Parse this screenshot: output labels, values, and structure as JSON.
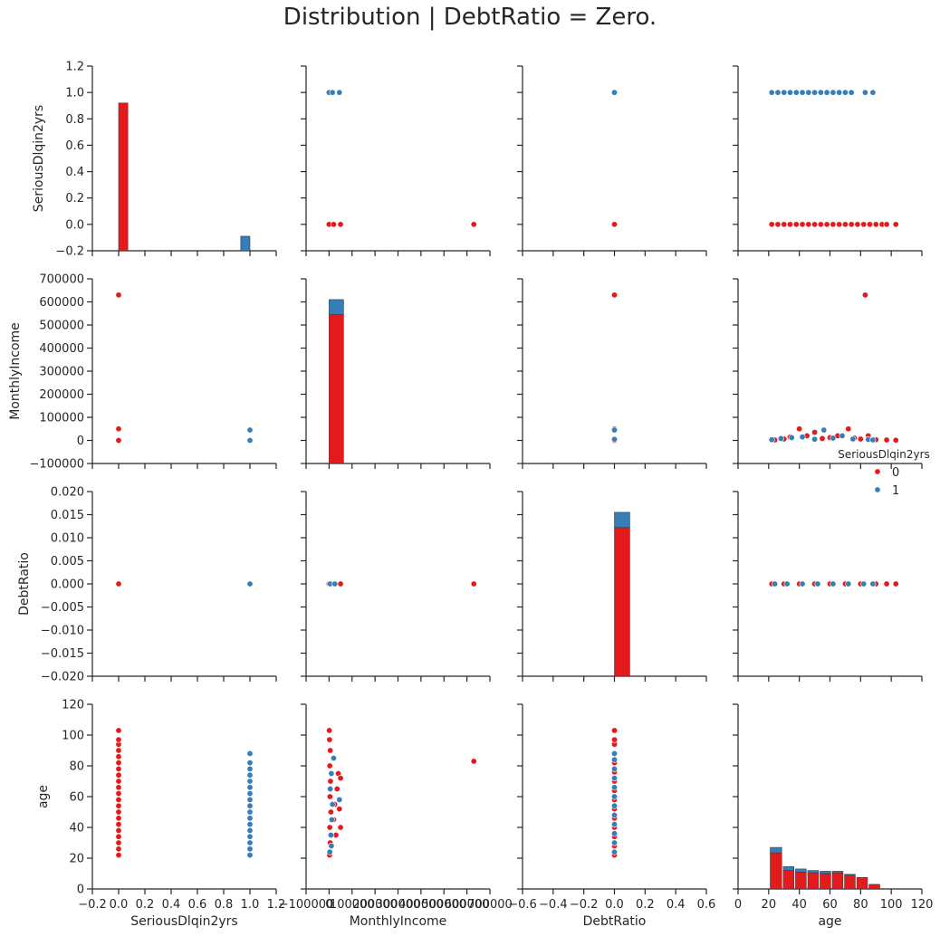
{
  "title": "Distribution | DebtRatio = Zero.",
  "colors": {
    "class0": "#e41a1c",
    "class1": "#377eb8",
    "axis": "#262626"
  },
  "legend": {
    "title": "SeriousDlqin2yrs",
    "entries": [
      {
        "label": "0",
        "color": "#e41a1c"
      },
      {
        "label": "1",
        "color": "#377eb8"
      }
    ],
    "placement": "right, between row 2 and row 3"
  },
  "chart_data": {
    "type": "scatter",
    "title": "Distribution | DebtRatio = Zero.",
    "grid": false,
    "variables": [
      "SeriousDlqin2yrs",
      "MonthlyIncome",
      "DebtRatio",
      "age"
    ],
    "axes": {
      "SeriousDlqin2yrs": {
        "range": [
          -0.2,
          1.2
        ],
        "ticks": [
          -0.2,
          0,
          0.2,
          0.4,
          0.6,
          0.8,
          1.0,
          1.2
        ],
        "row_tick_labels": [
          "1.2",
          "1.0",
          "0.8",
          "0.6",
          "0.4",
          "0.2",
          "0.0",
          "−0.2"
        ],
        "col_tick_labels": [
          "−0.2",
          "0.0",
          "0.2",
          "0.4",
          "0.6",
          "0.8",
          "1.0",
          "1.2"
        ]
      },
      "MonthlyIncome": {
        "range": [
          -100000,
          700000
        ],
        "ticks": [
          -100000,
          0,
          100000,
          200000,
          300000,
          400000,
          500000,
          600000,
          700000
        ],
        "row_tick_labels": [
          "700000",
          "600000",
          "500000",
          "400000",
          "300000",
          "200000",
          "100000",
          "0",
          "−100000"
        ],
        "col_tick_labels": [
          "−100000",
          "0",
          "100000",
          "200000",
          "300000",
          "400000",
          "500000",
          "600000",
          "700000"
        ]
      },
      "DebtRatio": {
        "row_range": [
          -0.02,
          0.02
        ],
        "col_range": [
          -0.6,
          0.6
        ],
        "row_ticks": [
          -0.02,
          -0.015,
          -0.01,
          -0.005,
          0,
          0.005,
          0.01,
          0.015,
          0.02
        ],
        "col_ticks": [
          -0.6,
          -0.4,
          -0.2,
          0,
          0.2,
          0.4,
          0.6
        ],
        "row_tick_labels": [
          "0.020",
          "0.015",
          "0.010",
          "0.005",
          "0.000",
          "−0.005",
          "−0.010",
          "−0.015",
          "−0.020"
        ],
        "col_tick_labels": [
          "−0.6",
          "−0.4",
          "−0.2",
          "0.0",
          "0.2",
          "0.4",
          "0.6"
        ]
      },
      "age": {
        "range": [
          0,
          120
        ],
        "ticks": [
          0,
          20,
          40,
          60,
          80,
          100,
          120
        ],
        "row_tick_labels": [
          "120",
          "100",
          "80",
          "60",
          "40",
          "20",
          "0"
        ],
        "col_tick_labels": [
          "0",
          "20",
          "40",
          "60",
          "80",
          "100",
          "120"
        ]
      }
    },
    "diagonal_histograms": {
      "SeriousDlqin2yrs": [
        {
          "x0": 0.0,
          "x1": 0.07,
          "y0": -0.2,
          "y1": 0.92,
          "series": "0"
        },
        {
          "x0": 0.93,
          "x1": 1.0,
          "y0": -0.2,
          "y1": -0.09,
          "series": "1"
        }
      ],
      "MonthlyIncome": [
        {
          "x0": 0,
          "x1": 63000,
          "y0": -100000,
          "y1": 545000,
          "series": "0"
        },
        {
          "x0": 0,
          "x1": 63000,
          "y0": 545000,
          "y1": 610000,
          "series": "1"
        }
      ],
      "DebtRatio": [
        {
          "x0": 0.0,
          "x1": 0.1,
          "y0": -0.02,
          "y1": 0.0122,
          "series": "0"
        },
        {
          "x0": 0.0,
          "x1": 0.1,
          "y0": 0.0122,
          "y1": 0.0155,
          "series": "1"
        }
      ],
      "age": [
        {
          "x0": 21,
          "x1": 28.5,
          "y0": 0,
          "y1": 23.5,
          "series": "0"
        },
        {
          "x0": 21,
          "x1": 28.5,
          "y0": 23.5,
          "y1": 27,
          "series": "1"
        },
        {
          "x0": 29.5,
          "x1": 36.5,
          "y0": 0,
          "y1": 12,
          "series": "0"
        },
        {
          "x0": 29.5,
          "x1": 36.5,
          "y0": 12,
          "y1": 14.5,
          "series": "1"
        },
        {
          "x0": 37.5,
          "x1": 44.5,
          "y0": 0,
          "y1": 11,
          "series": "0"
        },
        {
          "x0": 37.5,
          "x1": 44.5,
          "y0": 11,
          "y1": 13,
          "series": "1"
        },
        {
          "x0": 45.5,
          "x1": 52.5,
          "y0": 0,
          "y1": 10.5,
          "series": "0"
        },
        {
          "x0": 45.5,
          "x1": 52.5,
          "y0": 10.5,
          "y1": 12,
          "series": "1"
        },
        {
          "x0": 53.5,
          "x1": 60.5,
          "y0": 0,
          "y1": 10,
          "series": "0"
        },
        {
          "x0": 53.5,
          "x1": 60.5,
          "y0": 10,
          "y1": 11.5,
          "series": "1"
        },
        {
          "x0": 61.5,
          "x1": 68.5,
          "y0": 0,
          "y1": 10.5,
          "series": "0"
        },
        {
          "x0": 61.5,
          "x1": 68.5,
          "y0": 10.5,
          "y1": 11.5,
          "series": "1"
        },
        {
          "x0": 69.5,
          "x1": 76.5,
          "y0": 0,
          "y1": 9,
          "series": "0"
        },
        {
          "x0": 69.5,
          "x1": 76.5,
          "y0": 9,
          "y1": 9.5,
          "series": "1"
        },
        {
          "x0": 77.5,
          "x1": 84.5,
          "y0": 0,
          "y1": 7.5,
          "series": "0"
        },
        {
          "x0": 85.5,
          "x1": 92.5,
          "y0": 0,
          "y1": 3,
          "series": "0"
        }
      ]
    },
    "scatter_points": {
      "SeriousDlqin2yrs|MonthlyIncome": {
        "0": [
          [
            0,
            0
          ],
          [
            0,
            50000
          ],
          [
            0,
            630000
          ]
        ],
        "1": [
          [
            1,
            0
          ],
          [
            1,
            45000
          ]
        ]
      },
      "SeriousDlqin2yrs|DebtRatio": {
        "0": [
          [
            0,
            0
          ]
        ],
        "1": [
          [
            1,
            0
          ]
        ]
      },
      "SeriousDlqin2yrs|age": {
        "0": [
          [
            0,
            22
          ],
          [
            0,
            26
          ],
          [
            0,
            30
          ],
          [
            0,
            34
          ],
          [
            0,
            38
          ],
          [
            0,
            42
          ],
          [
            0,
            46
          ],
          [
            0,
            50
          ],
          [
            0,
            54
          ],
          [
            0,
            58
          ],
          [
            0,
            62
          ],
          [
            0,
            66
          ],
          [
            0,
            70
          ],
          [
            0,
            74
          ],
          [
            0,
            78
          ],
          [
            0,
            82
          ],
          [
            0,
            86
          ],
          [
            0,
            90
          ],
          [
            0,
            94
          ],
          [
            0,
            97
          ],
          [
            0,
            103
          ]
        ],
        "1": [
          [
            1,
            22
          ],
          [
            1,
            26
          ],
          [
            1,
            30
          ],
          [
            1,
            34
          ],
          [
            1,
            38
          ],
          [
            1,
            42
          ],
          [
            1,
            46
          ],
          [
            1,
            50
          ],
          [
            1,
            54
          ],
          [
            1,
            58
          ],
          [
            1,
            62
          ],
          [
            1,
            66
          ],
          [
            1,
            70
          ],
          [
            1,
            74
          ],
          [
            1,
            78
          ],
          [
            1,
            82
          ],
          [
            1,
            88
          ]
        ]
      },
      "MonthlyIncome|SeriousDlqin2yrs": {
        "0": [
          [
            0,
            0
          ],
          [
            20000,
            0
          ],
          [
            50000,
            0
          ],
          [
            630000,
            0
          ]
        ],
        "1": [
          [
            0,
            1
          ],
          [
            15000,
            1
          ],
          [
            45000,
            1
          ]
        ]
      },
      "MonthlyIncome|DebtRatio": {
        "0": [
          [
            0,
            0
          ],
          [
            50000,
            0
          ],
          [
            630000,
            0
          ]
        ],
        "1": [
          [
            5000,
            0
          ],
          [
            25000,
            0
          ]
        ]
      },
      "MonthlyIncome|age": {
        "0": [
          [
            2000,
            22
          ],
          [
            5000,
            30
          ],
          [
            3000,
            40
          ],
          [
            8000,
            50
          ],
          [
            4000,
            60
          ],
          [
            6000,
            70
          ],
          [
            3000,
            80
          ],
          [
            5000,
            90
          ],
          [
            2000,
            97
          ],
          [
            1000,
            103
          ],
          [
            20000,
            45
          ],
          [
            25000,
            55
          ],
          [
            30000,
            35
          ],
          [
            35000,
            65
          ],
          [
            40000,
            75
          ],
          [
            50000,
            72
          ],
          [
            45000,
            52
          ],
          [
            50000,
            40
          ],
          [
            630000,
            83
          ]
        ],
        "1": [
          [
            3000,
            24
          ],
          [
            8000,
            35
          ],
          [
            12000,
            45
          ],
          [
            15000,
            55
          ],
          [
            5000,
            65
          ],
          [
            10000,
            75
          ],
          [
            20000,
            85
          ],
          [
            45000,
            58
          ],
          [
            10000,
            28
          ]
        ]
      },
      "DebtRatio|SeriousDlqin2yrs": {
        "0": [
          [
            0,
            0
          ]
        ],
        "1": [
          [
            0,
            1
          ]
        ]
      },
      "DebtRatio|MonthlyIncome": {
        "0": [
          [
            0,
            0
          ],
          [
            0,
            50000
          ],
          [
            0,
            630000
          ]
        ],
        "1": [
          [
            0,
            5000
          ],
          [
            0,
            45000
          ]
        ]
      },
      "DebtRatio|age": {
        "0": [
          [
            0,
            22
          ],
          [
            0,
            28
          ],
          [
            0,
            34
          ],
          [
            0,
            40
          ],
          [
            0,
            46
          ],
          [
            0,
            52
          ],
          [
            0,
            58
          ],
          [
            0,
            64
          ],
          [
            0,
            70
          ],
          [
            0,
            76
          ],
          [
            0,
            82
          ],
          [
            0,
            88
          ],
          [
            0,
            94
          ],
          [
            0,
            97
          ],
          [
            0,
            103
          ]
        ],
        "1": [
          [
            0,
            24
          ],
          [
            0,
            30
          ],
          [
            0,
            36
          ],
          [
            0,
            42
          ],
          [
            0,
            48
          ],
          [
            0,
            54
          ],
          [
            0,
            60
          ],
          [
            0,
            66
          ],
          [
            0,
            72
          ],
          [
            0,
            78
          ],
          [
            0,
            84
          ],
          [
            0,
            88
          ]
        ]
      },
      "age|SeriousDlqin2yrs": {
        "0": [
          [
            22,
            0
          ],
          [
            26,
            0
          ],
          [
            30,
            0
          ],
          [
            34,
            0
          ],
          [
            38,
            0
          ],
          [
            42,
            0
          ],
          [
            46,
            0
          ],
          [
            50,
            0
          ],
          [
            54,
            0
          ],
          [
            58,
            0
          ],
          [
            62,
            0
          ],
          [
            66,
            0
          ],
          [
            70,
            0
          ],
          [
            74,
            0
          ],
          [
            78,
            0
          ],
          [
            82,
            0
          ],
          [
            86,
            0
          ],
          [
            90,
            0
          ],
          [
            94,
            0
          ],
          [
            97,
            0
          ],
          [
            103,
            0
          ]
        ],
        "1": [
          [
            22,
            1
          ],
          [
            26,
            1
          ],
          [
            30,
            1
          ],
          [
            34,
            1
          ],
          [
            38,
            1
          ],
          [
            42,
            1
          ],
          [
            46,
            1
          ],
          [
            50,
            1
          ],
          [
            54,
            1
          ],
          [
            58,
            1
          ],
          [
            62,
            1
          ],
          [
            66,
            1
          ],
          [
            70,
            1
          ],
          [
            74,
            1
          ],
          [
            83,
            1
          ],
          [
            88,
            1
          ]
        ]
      },
      "age|MonthlyIncome": {
        "0": [
          [
            24,
            2000
          ],
          [
            30,
            6000
          ],
          [
            34,
            15000
          ],
          [
            40,
            50000
          ],
          [
            45,
            20000
          ],
          [
            50,
            35000
          ],
          [
            55,
            8000
          ],
          [
            60,
            12000
          ],
          [
            65,
            20000
          ],
          [
            72,
            50000
          ],
          [
            76,
            10000
          ],
          [
            80,
            6000
          ],
          [
            85,
            20000
          ],
          [
            90,
            3000
          ],
          [
            97,
            2000
          ],
          [
            103,
            1000
          ],
          [
            83,
            630000
          ]
        ],
        "1": [
          [
            22,
            3000
          ],
          [
            28,
            8000
          ],
          [
            35,
            12000
          ],
          [
            42,
            15000
          ],
          [
            50,
            5000
          ],
          [
            56,
            45000
          ],
          [
            62,
            10000
          ],
          [
            68,
            20000
          ],
          [
            75,
            6000
          ],
          [
            85,
            4000
          ],
          [
            88,
            2000
          ]
        ]
      },
      "age|DebtRatio": {
        "0": [
          [
            22,
            0
          ],
          [
            30,
            0
          ],
          [
            40,
            0
          ],
          [
            50,
            0
          ],
          [
            60,
            0
          ],
          [
            70,
            0
          ],
          [
            80,
            0
          ],
          [
            90,
            0
          ],
          [
            97,
            0
          ],
          [
            103,
            0
          ]
        ],
        "1": [
          [
            24,
            0
          ],
          [
            32,
            0
          ],
          [
            42,
            0
          ],
          [
            52,
            0
          ],
          [
            62,
            0
          ],
          [
            72,
            0
          ],
          [
            82,
            0
          ],
          [
            88,
            0
          ]
        ]
      }
    },
    "rows_bottom_xlabels": [
      "SeriousDlqin2yrs",
      "MonthlyIncome",
      "DebtRatio",
      "age"
    ],
    "ylabels_left": [
      "SeriousDlqin2yrs",
      "MonthlyIncome",
      "DebtRatio",
      "age"
    ]
  }
}
